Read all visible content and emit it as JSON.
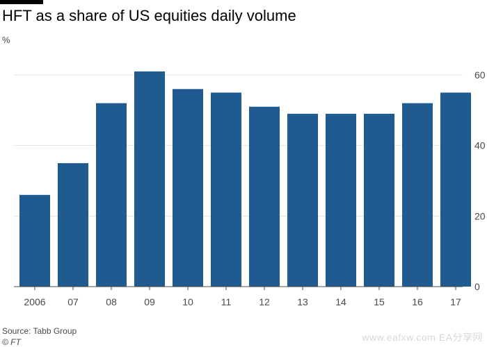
{
  "title": "HFT as a share of US equities daily volume",
  "unit_label": "%",
  "source": "Source: Tabb Group",
  "credit": "© FT",
  "watermark": "www.eafxw.com  EA分享网",
  "colors": {
    "bar": "#1f5a91",
    "gridline": "#e6e1da",
    "axis": "#4d4845",
    "text": "#4d4845",
    "brand_bar": "#000000"
  },
  "chart_data": {
    "type": "bar",
    "categories": [
      "2006",
      "07",
      "08",
      "09",
      "10",
      "11",
      "12",
      "13",
      "14",
      "15",
      "16",
      "17"
    ],
    "values": [
      26,
      35,
      52,
      61,
      56,
      55,
      51,
      49,
      49,
      49,
      52,
      55
    ],
    "title": "HFT as a share of US equities daily volume",
    "ylabel": "%",
    "ylim": [
      0,
      60
    ],
    "yticks": [
      0,
      20,
      40,
      60
    ],
    "y_axis_side": "right",
    "grid": true,
    "legend": "none"
  }
}
